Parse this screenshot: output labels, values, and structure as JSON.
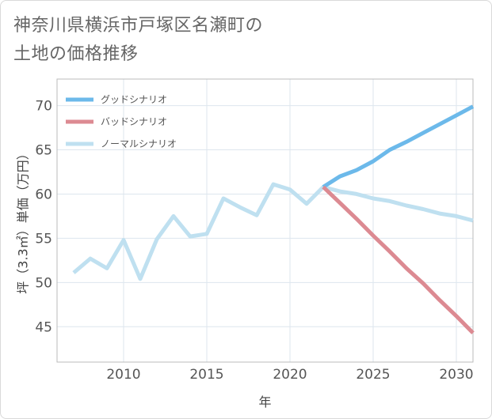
{
  "title_lines": [
    "神奈川県横浜市戸塚区名瀬町の",
    "土地の価格推移"
  ],
  "chart_data": {
    "type": "line",
    "xlabel": "年",
    "ylabel": "坪（3.3㎡）単価（万円）",
    "xlim": [
      2006,
      2031
    ],
    "ylim": [
      41,
      73
    ],
    "x_ticks": [
      2010,
      2015,
      2020,
      2025,
      2030
    ],
    "y_ticks": [
      45,
      50,
      55,
      60,
      65,
      70
    ],
    "grid": true,
    "legend_position": "top-left",
    "series": [
      {
        "name": "グッドシナリオ",
        "color": "#6cb9ea",
        "x": [
          2022,
          2023,
          2024,
          2025,
          2026,
          2027,
          2028,
          2029,
          2030,
          2031
        ],
        "y": [
          60.8,
          62.0,
          62.7,
          63.7,
          65.0,
          65.9,
          66.9,
          67.9,
          68.9,
          69.9
        ]
      },
      {
        "name": "バッドシナリオ",
        "color": "#dc8a92",
        "x": [
          2022,
          2023,
          2024,
          2025,
          2026,
          2027,
          2028,
          2029,
          2030,
          2031
        ],
        "y": [
          60.8,
          59.0,
          57.2,
          55.3,
          53.5,
          51.6,
          49.9,
          48.0,
          46.2,
          44.3
        ]
      },
      {
        "name": "ノーマルシナリオ",
        "color": "#bfe0f0",
        "x": [
          2007,
          2008,
          2009,
          2010,
          2011,
          2012,
          2013,
          2014,
          2015,
          2016,
          2017,
          2018,
          2019,
          2020,
          2021,
          2022,
          2023,
          2024,
          2025,
          2026,
          2027,
          2028,
          2029,
          2030,
          2031
        ],
        "y": [
          51.1,
          52.7,
          51.6,
          54.8,
          50.4,
          54.9,
          57.5,
          55.2,
          55.5,
          59.5,
          58.5,
          57.6,
          61.1,
          60.5,
          58.9,
          60.8,
          60.3,
          60.0,
          59.5,
          59.2,
          58.7,
          58.3,
          57.8,
          57.5,
          57.0
        ]
      }
    ]
  }
}
